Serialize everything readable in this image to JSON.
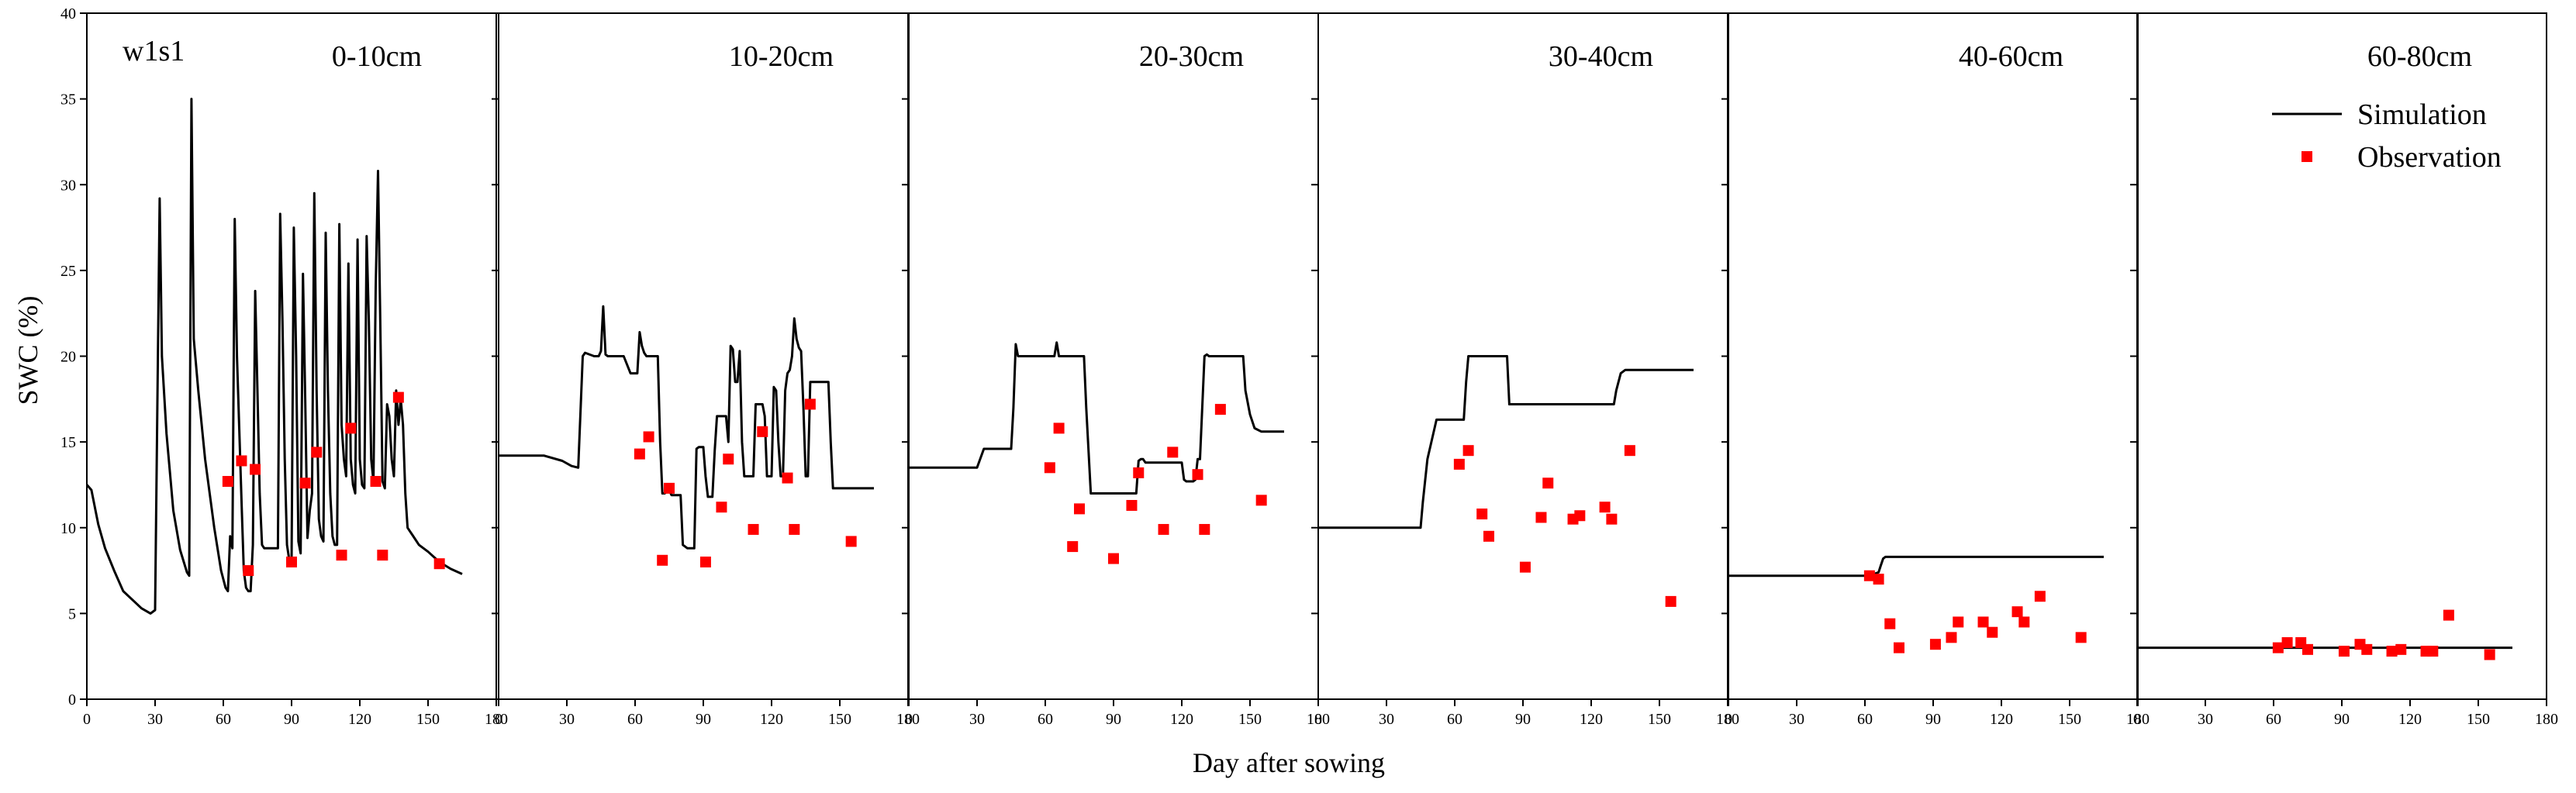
{
  "chart_data": {
    "type": "line",
    "title": "",
    "xlabel": "Day after sowing",
    "ylabel": "SWC (%)",
    "treatment_label": "w1s1",
    "xlim": [
      0,
      180
    ],
    "ylim": [
      0,
      40
    ],
    "x_ticks": [
      0,
      30,
      60,
      90,
      120,
      150,
      180
    ],
    "x_tick_labels": [
      "0",
      "30",
      "60",
      "90",
      "120",
      "150",
      "180"
    ],
    "y_ticks": [
      0,
      5,
      10,
      15,
      20,
      25,
      30,
      35,
      40
    ],
    "y_tick_labels": [
      "0",
      "5",
      "10",
      "15",
      "20",
      "25",
      "30",
      "35",
      "40"
    ],
    "legend": {
      "position": "top-right",
      "entries": [
        {
          "name": "Simulation",
          "marker": "line",
          "color": "#000000"
        },
        {
          "name": "Observation",
          "marker": "square",
          "color": "#ff0000"
        }
      ]
    },
    "panels": [
      {
        "label": "0-10cm",
        "simulation": {
          "x": [
            0,
            2,
            5,
            8,
            12,
            16,
            20,
            24,
            28,
            30,
            32,
            33,
            35,
            38,
            41,
            44,
            45,
            46,
            47,
            49,
            52,
            56,
            59,
            61,
            62,
            63,
            64,
            65,
            66,
            68,
            69,
            70,
            71,
            72,
            73,
            74,
            75,
            76,
            77,
            78,
            80,
            82,
            84,
            85,
            86,
            87,
            88,
            89,
            90,
            91,
            92,
            93,
            94,
            95,
            96,
            97,
            98,
            99,
            100,
            101,
            102,
            103,
            104,
            105,
            106,
            107,
            108,
            109,
            110,
            111,
            112,
            113,
            114,
            115,
            116,
            117,
            118,
            119,
            120,
            121,
            122,
            123,
            124,
            125,
            126,
            127,
            128,
            129,
            130,
            131,
            132,
            133,
            134,
            135,
            136,
            137,
            138,
            139,
            140,
            141,
            142,
            143,
            144,
            146,
            150,
            155,
            160,
            165
          ],
          "y": [
            12.5,
            12.2,
            10.2,
            8.8,
            7.5,
            6.3,
            5.8,
            5.3,
            5.0,
            5.2,
            29.2,
            20.0,
            15.5,
            11.0,
            8.7,
            7.4,
            7.2,
            35.0,
            21.0,
            18.0,
            14.0,
            10.0,
            7.5,
            6.5,
            6.3,
            9.5,
            8.8,
            28.0,
            20.0,
            11.5,
            7.5,
            6.5,
            6.3,
            6.3,
            9.0,
            23.8,
            18.0,
            12.0,
            9.0,
            8.8,
            8.8,
            8.8,
            8.8,
            28.3,
            22.0,
            14.0,
            9.0,
            8.1,
            8.0,
            27.5,
            20.0,
            9.2,
            8.5,
            24.8,
            17.5,
            9.4,
            11.0,
            12.0,
            29.5,
            18.0,
            10.5,
            9.5,
            9.2,
            27.2,
            18.0,
            12.0,
            9.5,
            9.0,
            9.0,
            27.7,
            16.0,
            14.0,
            13.0,
            25.4,
            14.0,
            12.5,
            12.0,
            26.8,
            14.0,
            12.5,
            12.3,
            27.0,
            22.0,
            14.0,
            12.7,
            24.0,
            30.8,
            22.0,
            12.7,
            12.3,
            17.2,
            16.5,
            14.0,
            13.0,
            18.0,
            16.0,
            17.5,
            16.0,
            12.0,
            10.0,
            9.8,
            9.6,
            9.4,
            9.0,
            8.6,
            8.0,
            7.6,
            7.3
          ]
        },
        "observation": {
          "x": [
            62,
            68,
            71,
            74,
            90,
            96,
            101,
            112,
            116,
            127,
            130,
            137,
            155
          ],
          "y": [
            12.7,
            13.9,
            7.5,
            13.4,
            8.0,
            12.6,
            14.4,
            8.4,
            15.8,
            12.7,
            8.4,
            17.6,
            7.9
          ]
        }
      },
      {
        "label": "10-20cm",
        "simulation": {
          "x": [
            0,
            20,
            28,
            32,
            35,
            37,
            38,
            42,
            44,
            45,
            46,
            47,
            48,
            50,
            55,
            58,
            59,
            60,
            61,
            62,
            63,
            64,
            65,
            66,
            67,
            70,
            71,
            72,
            73,
            75,
            76,
            80,
            81,
            82,
            83,
            84,
            86,
            87,
            88,
            90,
            91,
            92,
            93,
            94,
            95,
            96,
            97,
            98,
            99,
            100,
            101,
            102,
            103,
            104,
            105,
            106,
            107,
            108,
            110,
            112,
            113,
            114,
            116,
            117,
            118,
            120,
            121,
            122,
            123,
            124,
            125,
            126,
            127,
            128,
            129,
            130,
            131,
            132,
            133,
            134,
            135,
            136,
            137,
            138,
            139,
            140,
            141,
            145,
            146,
            147,
            150,
            155,
            160,
            165
          ],
          "y": [
            14.2,
            14.2,
            13.9,
            13.6,
            13.5,
            20.0,
            20.2,
            20.0,
            20.0,
            20.3,
            22.9,
            20.1,
            20.0,
            20.0,
            20.0,
            19.0,
            19.0,
            19.0,
            19.0,
            21.4,
            20.6,
            20.2,
            20.0,
            20.0,
            20.0,
            20.0,
            15.0,
            12.0,
            12.0,
            12.2,
            11.9,
            11.9,
            9.0,
            8.9,
            8.8,
            8.8,
            8.8,
            14.6,
            14.7,
            14.7,
            13.0,
            11.8,
            11.8,
            11.8,
            14.5,
            16.5,
            16.5,
            16.5,
            16.5,
            16.5,
            15.0,
            20.6,
            20.4,
            18.5,
            18.5,
            20.3,
            15.0,
            13.0,
            13.0,
            13.0,
            17.2,
            17.2,
            17.2,
            16.5,
            13.0,
            13.0,
            18.2,
            18.0,
            15.0,
            13.0,
            13.0,
            18.0,
            19.0,
            19.2,
            20.0,
            22.2,
            21.0,
            20.5,
            20.3,
            17.0,
            13.0,
            13.0,
            18.5,
            18.5,
            18.5,
            18.5,
            18.5,
            18.5,
            15.0,
            12.3,
            12.3,
            12.3,
            12.3,
            12.3
          ]
        },
        "observation": {
          "x": [
            62,
            66,
            72,
            75,
            91,
            98,
            101,
            112,
            116,
            127,
            130,
            137,
            155
          ],
          "y": [
            14.3,
            15.3,
            8.1,
            12.3,
            8.0,
            11.2,
            14.0,
            9.9,
            15.6,
            12.9,
            9.9,
            17.2,
            9.2
          ]
        }
      },
      {
        "label": "20-30cm",
        "simulation": {
          "x": [
            0,
            10,
            20,
            30,
            33,
            35,
            40,
            45,
            46,
            47,
            48,
            55,
            60,
            64,
            65,
            66,
            67,
            70,
            75,
            77,
            78,
            80,
            85,
            90,
            95,
            100,
            101,
            102,
            103,
            104,
            105,
            110,
            113,
            114,
            115,
            116,
            117,
            118,
            120,
            121,
            122,
            125,
            126,
            127,
            128,
            130,
            131,
            132,
            135,
            140,
            145,
            147,
            148,
            150,
            152,
            155,
            160,
            165
          ],
          "y": [
            13.5,
            13.5,
            13.5,
            13.5,
            14.6,
            14.6,
            14.6,
            14.6,
            17.0,
            20.7,
            20.0,
            20.0,
            20.0,
            20.0,
            20.8,
            20.0,
            20.0,
            20.0,
            20.0,
            20.0,
            17.0,
            12.0,
            12.0,
            12.0,
            12.0,
            12.0,
            13.9,
            14.0,
            14.0,
            13.8,
            13.8,
            13.8,
            13.8,
            13.8,
            13.8,
            13.8,
            13.8,
            13.8,
            13.8,
            12.8,
            12.7,
            12.7,
            12.8,
            14.0,
            14.0,
            20.0,
            20.1,
            20.0,
            20.0,
            20.0,
            20.0,
            20.0,
            18.0,
            16.6,
            15.8,
            15.6,
            15.6,
            15.6
          ]
        },
        "observation": {
          "x": [
            62,
            66,
            72,
            75,
            90,
            98,
            101,
            112,
            116,
            127,
            130,
            137,
            155
          ],
          "y": [
            13.5,
            15.8,
            8.9,
            11.1,
            8.2,
            11.3,
            13.2,
            9.9,
            14.4,
            13.1,
            9.9,
            16.9,
            11.6
          ]
        }
      },
      {
        "label": "30-40cm",
        "simulation": {
          "x": [
            0,
            10,
            20,
            30,
            40,
            45,
            46,
            48,
            52,
            56,
            60,
            62,
            64,
            65,
            66,
            67,
            68,
            70,
            72,
            75,
            80,
            83,
            84,
            85,
            90,
            100,
            110,
            120,
            130,
            131,
            133,
            135,
            140,
            150,
            160,
            165
          ],
          "y": [
            10.0,
            10.0,
            10.0,
            10.0,
            10.0,
            10.0,
            11.5,
            14.0,
            16.3,
            16.3,
            16.3,
            16.3,
            16.3,
            18.5,
            20.0,
            20.0,
            20.0,
            20.0,
            20.0,
            20.0,
            20.0,
            20.0,
            17.2,
            17.2,
            17.2,
            17.2,
            17.2,
            17.2,
            17.2,
            18.0,
            19.0,
            19.2,
            19.2,
            19.2,
            19.2,
            19.2
          ]
        },
        "observation": {
          "x": [
            62,
            66,
            72,
            75,
            91,
            98,
            101,
            112,
            115,
            126,
            129,
            137,
            155
          ],
          "y": [
            13.7,
            14.5,
            10.8,
            9.5,
            7.7,
            10.6,
            12.6,
            10.5,
            10.7,
            11.2,
            10.5,
            14.5,
            5.7
          ]
        }
      },
      {
        "label": "40-60cm",
        "simulation": {
          "x": [
            0,
            20,
            40,
            60,
            62,
            64,
            66,
            67,
            68,
            69,
            70,
            80,
            100,
            120,
            140,
            160,
            165
          ],
          "y": [
            7.2,
            7.2,
            7.2,
            7.2,
            7.2,
            7.3,
            7.4,
            7.8,
            8.2,
            8.3,
            8.3,
            8.3,
            8.3,
            8.3,
            8.3,
            8.3,
            8.3
          ]
        },
        "observation": {
          "x": [
            62,
            66,
            71,
            75,
            91,
            98,
            101,
            112,
            116,
            127,
            130,
            137,
            155
          ],
          "y": [
            7.2,
            7.0,
            4.4,
            3.0,
            3.2,
            3.6,
            4.5,
            4.5,
            3.9,
            5.1,
            4.5,
            6.0,
            3.6
          ]
        }
      },
      {
        "label": "60-80cm",
        "simulation": {
          "x": [
            0,
            20,
            40,
            60,
            80,
            100,
            120,
            140,
            160,
            165
          ],
          "y": [
            3.0,
            3.0,
            3.0,
            3.0,
            3.0,
            3.0,
            3.0,
            3.0,
            3.0,
            3.0
          ]
        },
        "observation": {
          "x": [
            62,
            66,
            72,
            75,
            91,
            98,
            101,
            112,
            116,
            127,
            130,
            137,
            155
          ],
          "y": [
            3.0,
            3.3,
            3.3,
            2.9,
            2.8,
            3.2,
            2.9,
            2.8,
            2.9,
            2.8,
            2.8,
            4.9,
            2.6
          ]
        }
      }
    ]
  }
}
